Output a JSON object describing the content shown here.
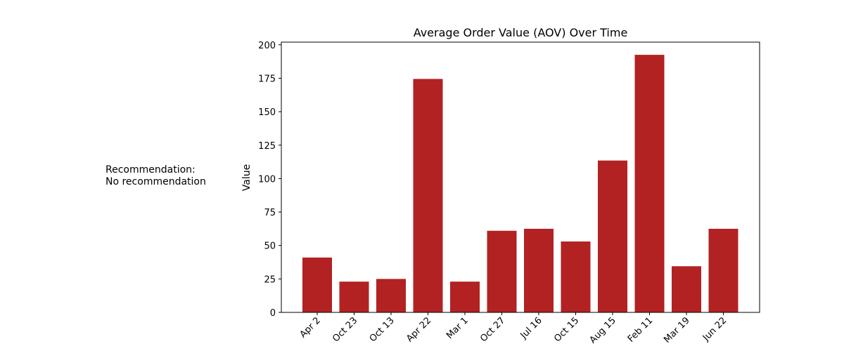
{
  "recommendation": {
    "heading": "Recommendation:",
    "text": "No recommendation"
  },
  "chart_data": {
    "type": "bar",
    "title": "Average Order Value (AOV) Over Time",
    "xlabel": "",
    "ylabel": "Value",
    "categories": [
      "Apr 2",
      "Oct 23",
      "Oct 13",
      "Apr 22",
      "Mar 1",
      "Oct 27",
      "Jul 16",
      "Oct 15",
      "Aug 15",
      "Feb 11",
      "Mar 19",
      "Jun 22"
    ],
    "values": [
      41,
      23,
      25,
      174.5,
      23,
      61,
      62.5,
      53,
      113.5,
      192.5,
      34.5,
      62.5
    ],
    "ylim": [
      0,
      202
    ],
    "yticks": [
      0,
      25,
      50,
      75,
      100,
      125,
      150,
      175,
      200
    ],
    "grid": false,
    "bar_color": "#b22222"
  }
}
